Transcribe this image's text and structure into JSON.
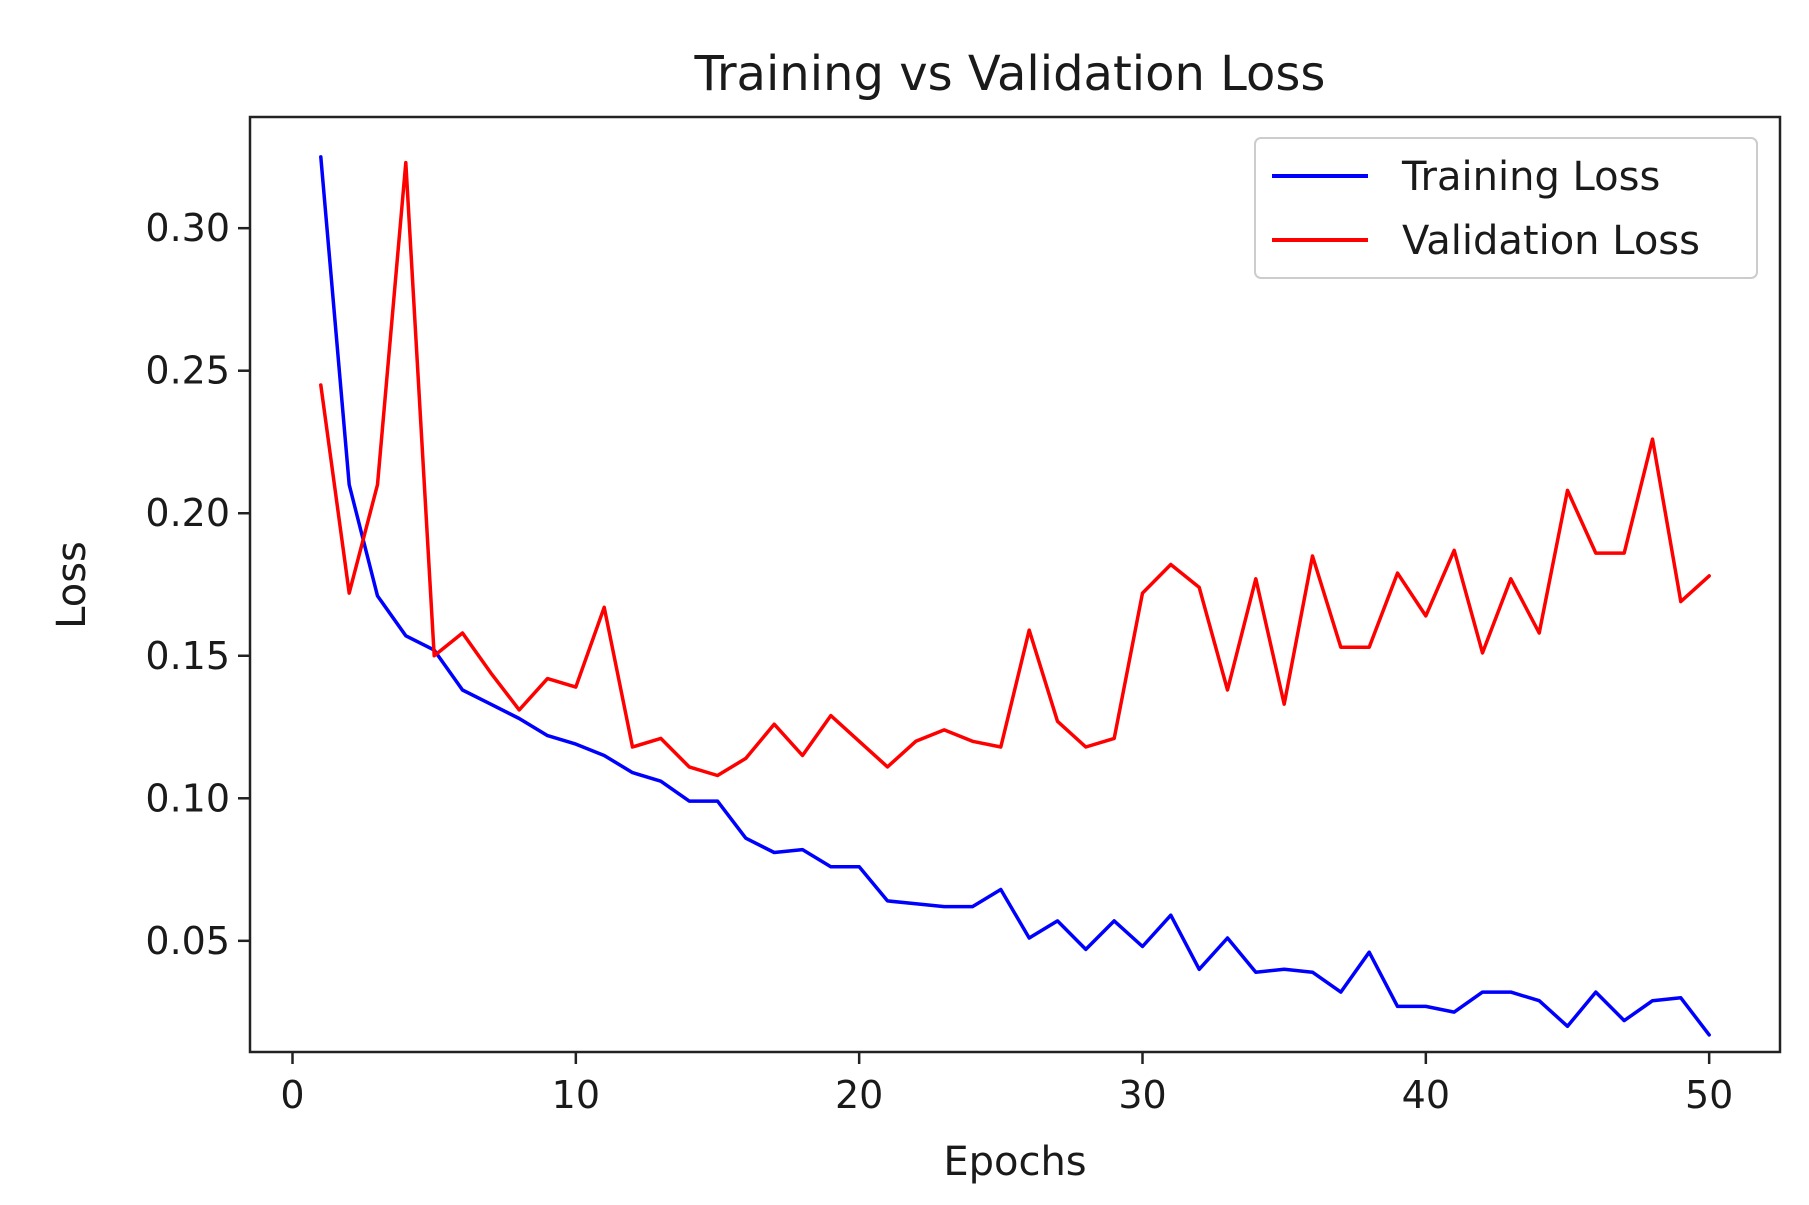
{
  "chart_data": {
    "type": "line",
    "title": "Training vs Validation Loss",
    "xlabel": "Epochs",
    "ylabel": "Loss",
    "xlim": [
      -1.5,
      52.5
    ],
    "ylim": [
      0.011,
      0.339
    ],
    "xticks": [
      0,
      10,
      20,
      30,
      40,
      50
    ],
    "yticks": [
      0.05,
      0.1,
      0.15,
      0.2,
      0.25,
      0.3
    ],
    "ytick_labels": [
      "0.05",
      "0.10",
      "0.15",
      "0.20",
      "0.25",
      "0.30"
    ],
    "xtick_labels": [
      "0",
      "10",
      "20",
      "30",
      "40",
      "50"
    ],
    "grid": false,
    "legend_position": "top-right",
    "x": [
      1,
      2,
      3,
      4,
      5,
      6,
      7,
      8,
      9,
      10,
      11,
      12,
      13,
      14,
      15,
      16,
      17,
      18,
      19,
      20,
      21,
      22,
      23,
      24,
      25,
      26,
      27,
      28,
      29,
      30,
      31,
      32,
      33,
      34,
      35,
      36,
      37,
      38,
      39,
      40,
      41,
      42,
      43,
      44,
      45,
      46,
      47,
      48,
      49,
      50
    ],
    "series": [
      {
        "name": "Training Loss",
        "color": "#0000ff",
        "values": [
          0.325,
          0.21,
          0.171,
          0.157,
          0.152,
          0.138,
          0.133,
          0.128,
          0.122,
          0.119,
          0.115,
          0.109,
          0.106,
          0.099,
          0.099,
          0.086,
          0.081,
          0.082,
          0.076,
          0.076,
          0.064,
          0.063,
          0.062,
          0.062,
          0.068,
          0.051,
          0.057,
          0.047,
          0.057,
          0.048,
          0.059,
          0.04,
          0.051,
          0.039,
          0.04,
          0.039,
          0.032,
          0.046,
          0.027,
          0.027,
          0.025,
          0.032,
          0.032,
          0.029,
          0.02,
          0.032,
          0.022,
          0.029,
          0.03,
          0.017
        ]
      },
      {
        "name": "Validation Loss",
        "color": "#ff0000",
        "values": [
          0.245,
          0.172,
          0.21,
          0.323,
          0.15,
          0.158,
          0.144,
          0.131,
          0.142,
          0.139,
          0.167,
          0.118,
          0.121,
          0.111,
          0.108,
          0.114,
          0.126,
          0.115,
          0.129,
          0.12,
          0.111,
          0.12,
          0.124,
          0.12,
          0.118,
          0.159,
          0.127,
          0.118,
          0.121,
          0.172,
          0.182,
          0.174,
          0.138,
          0.177,
          0.133,
          0.185,
          0.153,
          0.153,
          0.179,
          0.164,
          0.187,
          0.151,
          0.177,
          0.158,
          0.208,
          0.186,
          0.186,
          0.226,
          0.169,
          0.178
        ]
      }
    ]
  }
}
